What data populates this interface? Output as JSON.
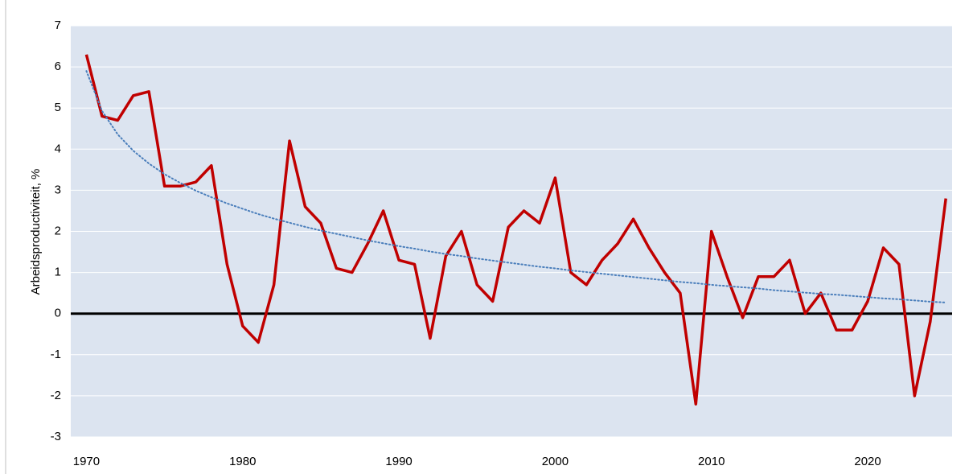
{
  "chart_data": {
    "type": "line",
    "y_label": "Arbeidsproductiviteit, %",
    "x": [
      1970,
      1971,
      1972,
      1973,
      1974,
      1975,
      1976,
      1977,
      1978,
      1979,
      1980,
      1981,
      1982,
      1983,
      1984,
      1985,
      1986,
      1987,
      1988,
      1989,
      1990,
      1991,
      1992,
      1993,
      1994,
      1995,
      1996,
      1997,
      1998,
      1999,
      2000,
      2001,
      2002,
      2003,
      2004,
      2005,
      2006,
      2007,
      2008,
      2009,
      2010,
      2011,
      2012,
      2013,
      2014,
      2015,
      2016,
      2017,
      2018,
      2019,
      2020,
      2021,
      2022,
      2023,
      2024,
      2025
    ],
    "series": [
      {
        "color": "#c00000",
        "style": "solid",
        "values": [
          6.3,
          4.8,
          4.7,
          5.3,
          5.4,
          3.1,
          3.1,
          3.2,
          3.6,
          1.2,
          -0.3,
          -0.7,
          0.7,
          4.2,
          2.6,
          2.2,
          1.1,
          1.0,
          1.7,
          2.5,
          1.3,
          1.2,
          -0.6,
          1.4,
          2.0,
          0.7,
          0.3,
          2.1,
          2.5,
          2.2,
          3.3,
          1.0,
          0.7,
          1.3,
          1.7,
          2.3,
          1.6,
          1.0,
          0.5,
          -2.2,
          2.0,
          0.9,
          -0.1,
          0.9,
          0.9,
          1.3,
          0.0,
          0.5,
          -0.4,
          -0.4,
          0.3,
          1.6,
          1.2,
          -2.0,
          -0.2,
          2.8
        ]
      },
      {
        "color": "#4a7ebb",
        "style": "dotted",
        "values": [
          5.9,
          4.93,
          4.36,
          3.96,
          3.65,
          3.39,
          3.18,
          2.99,
          2.83,
          2.68,
          2.55,
          2.42,
          2.31,
          2.21,
          2.11,
          2.02,
          1.94,
          1.86,
          1.78,
          1.71,
          1.64,
          1.58,
          1.51,
          1.45,
          1.4,
          1.34,
          1.29,
          1.24,
          1.19,
          1.14,
          1.1,
          1.05,
          1.01,
          0.97,
          0.93,
          0.89,
          0.85,
          0.81,
          0.77,
          0.74,
          0.7,
          0.67,
          0.64,
          0.61,
          0.57,
          0.54,
          0.51,
          0.48,
          0.46,
          0.43,
          0.4,
          0.37,
          0.35,
          0.32,
          0.29,
          0.27
        ]
      }
    ],
    "xlim": [
      1969,
      2025.4
    ],
    "xticks": [
      1970,
      1980,
      1990,
      2000,
      2010,
      2020
    ],
    "ylim": [
      -3,
      7
    ],
    "yticks": [
      -3,
      -2,
      -1,
      0,
      1,
      2,
      3,
      4,
      5,
      6,
      7
    ],
    "grid": true,
    "zero_line": true,
    "plot_background": "#dce4f0"
  }
}
